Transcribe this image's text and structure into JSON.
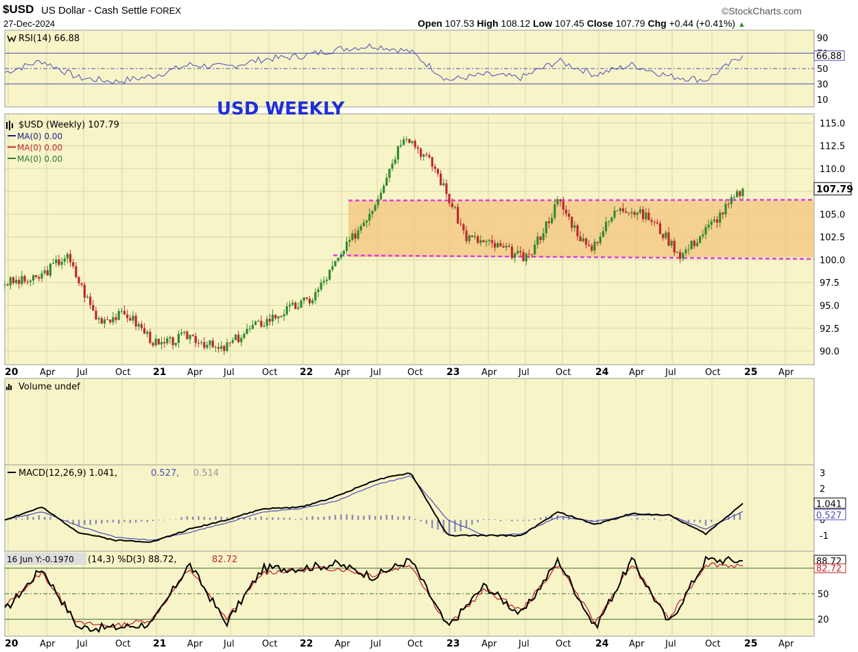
{
  "header": {
    "symbol": "$USD",
    "description": "US Dollar - Cash Settle",
    "exchange": "FOREX",
    "date": "27-Dec-2024",
    "open_label": "Open",
    "open": "107.53",
    "high_label": "High",
    "high": "108.12",
    "low_label": "Low",
    "low": "107.45",
    "close_label": "Close",
    "close": "107.79",
    "chg_label": "Chg",
    "chg": "+0.44 (+0.41%)",
    "watermark": "©StockCharts.com"
  },
  "annotation": "USD WEEKLY",
  "colors": {
    "panel_bg": "#f7f4c8",
    "grid": "#d8d6a8",
    "up": "#2e8b2e",
    "down": "#c0272d",
    "range_fill": "#f3c47f",
    "range_line": "#e03ae0",
    "indicator_line": "#4a4ab8",
    "title_blue": "#1f2fd8",
    "macd_hist": "#8a8ab8"
  },
  "icons": [
    "candle-icon",
    "volume-icon",
    "up-arrow-icon"
  ],
  "time_axis": [
    "20",
    "Apr",
    "Jul",
    "Oct",
    "21",
    "Apr",
    "Jul",
    "Oct",
    "22",
    "Apr",
    "Jul",
    "Oct",
    "23",
    "Apr",
    "Jul",
    "Oct",
    "24",
    "Apr",
    "Jul",
    "Oct",
    "25",
    "Apr"
  ],
  "chart_data": [
    {
      "type": "line",
      "panel": "rsi",
      "legend": "RSI(14) 66.88",
      "ylim": [
        0,
        100
      ],
      "yticks": [
        "90",
        "70",
        "50",
        "30",
        "10"
      ],
      "reference_lines": [
        70,
        50,
        30
      ],
      "last_value_label": "66.88",
      "x": [
        "Jan 2020",
        "Apr 2020",
        "Jul 2020",
        "Oct 2020",
        "Jan 2021",
        "Apr 2021",
        "Jul 2021",
        "Oct 2021",
        "Jan 2022",
        "Apr 2022",
        "Jul 2022",
        "Oct 2022",
        "Jan 2023",
        "Apr 2023",
        "Jul 2023",
        "Oct 2023",
        "Jan 2024",
        "Apr 2024",
        "Jul 2024",
        "Oct 2024",
        "Dec 2024"
      ],
      "series": [
        {
          "name": "RSI(14)",
          "values": [
            45,
            60,
            38,
            33,
            40,
            55,
            52,
            62,
            66,
            75,
            80,
            72,
            35,
            42,
            38,
            60,
            42,
            55,
            40,
            35,
            66.88
          ]
        }
      ]
    },
    {
      "type": "bar",
      "panel": "price",
      "title": "USD WEEKLY",
      "legend": [
        "$USD (Weekly) 107.79",
        "MA(0) 0.00",
        "MA(0) 0.00",
        "MA(0) 0.00"
      ],
      "ylim": [
        88.5,
        116
      ],
      "yticks": [
        "115.0",
        "112.5",
        "110.0",
        "107.5",
        "105.0",
        "102.5",
        "100.0",
        "97.5",
        "95.0",
        "92.5",
        "90.0"
      ],
      "last_value_label": "107.79",
      "range_box": {
        "top": 106.5,
        "bottom": 100.3,
        "from": "Apr 2022",
        "to": "Dec 2024"
      },
      "x": [
        "Jan 2020",
        "Mar 2020",
        "Apr 2020",
        "Jul 2020",
        "Oct 2020",
        "Jan 2021",
        "Apr 2021",
        "May 2021",
        "Jul 2021",
        "Oct 2021",
        "Jan 2022",
        "Apr 2022",
        "Jul 2022",
        "Sep 2022",
        "Oct 2022",
        "Jan 2023",
        "Apr 2023",
        "Jul 2023",
        "Oct 2023",
        "Jan 2024",
        "Apr 2024",
        "Jul 2024",
        "Sep 2024",
        "Oct 2024",
        "Dec 2024"
      ],
      "series": [
        {
          "name": "$USD (Weekly)",
          "values": [
            97.5,
            97.8,
            100.5,
            93.5,
            94.0,
            90.5,
            91.8,
            90.0,
            92.5,
            94.2,
            95.8,
            100.8,
            106.0,
            114.0,
            110.0,
            102.5,
            101.5,
            100.0,
            106.5,
            101.0,
            106.0,
            104.5,
            100.5,
            104.0,
            107.79
          ]
        }
      ]
    },
    {
      "type": "bar",
      "panel": "volume",
      "legend": "Volume undef",
      "series": []
    },
    {
      "type": "line",
      "panel": "macd",
      "legend": [
        "MACD(12,26,9) 1.041,",
        "0.527,",
        "0.514"
      ],
      "ylim": [
        -2,
        3.5
      ],
      "yticks": [
        "3",
        "2",
        "1",
        "0",
        "-1"
      ],
      "last_value_labels": [
        "1.041",
        "0.527"
      ],
      "x": [
        "Jan 2020",
        "Apr 2020",
        "Jul 2020",
        "Oct 2020",
        "Jan 2021",
        "Apr 2021",
        "Jul 2021",
        "Oct 2021",
        "Jan 2022",
        "Apr 2022",
        "Jul 2022",
        "Oct 2022",
        "Jan 2023",
        "Apr 2023",
        "Jul 2023",
        "Oct 2023",
        "Jan 2024",
        "Apr 2024",
        "Jul 2024",
        "Oct 2024",
        "Dec 2024"
      ],
      "series": [
        {
          "name": "MACD(12,26,9)",
          "values": [
            0.0,
            0.8,
            -0.8,
            -1.3,
            -1.4,
            -0.6,
            0.0,
            0.7,
            0.8,
            1.5,
            2.5,
            3.0,
            -1.0,
            -1.0,
            -1.0,
            0.5,
            -0.3,
            0.4,
            0.3,
            -0.9,
            1.041
          ]
        },
        {
          "name": "Signal",
          "values": [
            0.0,
            0.5,
            -0.4,
            -1.1,
            -1.3,
            -0.8,
            -0.2,
            0.5,
            0.7,
            1.2,
            2.2,
            2.8,
            0.0,
            -1.0,
            -0.9,
            0.2,
            -0.1,
            0.3,
            0.3,
            -0.6,
            0.527
          ]
        },
        {
          "name": "Histogram",
          "values": [
            0.0,
            0.3,
            -0.4,
            -0.2,
            -0.1,
            0.2,
            0.2,
            0.2,
            0.1,
            0.3,
            0.3,
            0.2,
            -1.0,
            0.0,
            -0.1,
            0.3,
            -0.2,
            0.1,
            0.0,
            -0.3,
            0.514
          ]
        }
      ]
    },
    {
      "type": "line",
      "panel": "stochastic",
      "legend": [
        "16 Jun Y:-0.1970",
        "(14,3) %D(3) 88.72,",
        "82.72"
      ],
      "ylim": [
        0,
        100
      ],
      "yticks": [
        "80",
        "50",
        "20"
      ],
      "reference_lines": [
        80,
        50,
        20
      ],
      "last_value_labels": [
        "88.72",
        "82.72"
      ],
      "x": [
        "Jan 2020",
        "Apr 2020",
        "Jul 2020",
        "Oct 2020",
        "Jan 2021",
        "Apr 2021",
        "Jul 2021",
        "Oct 2021",
        "Jan 2022",
        "Apr 2022",
        "Jul 2022",
        "Oct 2022",
        "Jan 2023",
        "Apr 2023",
        "Jul 2023",
        "Oct 2023",
        "Jan 2024",
        "Apr 2024",
        "Jul 2024",
        "Oct 2024",
        "Dec 2024"
      ],
      "series": [
        {
          "name": "%K",
          "values": [
            30,
            80,
            10,
            10,
            15,
            85,
            15,
            80,
            80,
            85,
            70,
            90,
            10,
            60,
            25,
            90,
            10,
            90,
            15,
            90,
            88.72
          ]
        },
        {
          "name": "%D(3)",
          "values": [
            35,
            75,
            15,
            12,
            20,
            80,
            20,
            75,
            78,
            80,
            72,
            85,
            12,
            55,
            30,
            85,
            15,
            85,
            20,
            85,
            82.72
          ]
        }
      ]
    }
  ]
}
